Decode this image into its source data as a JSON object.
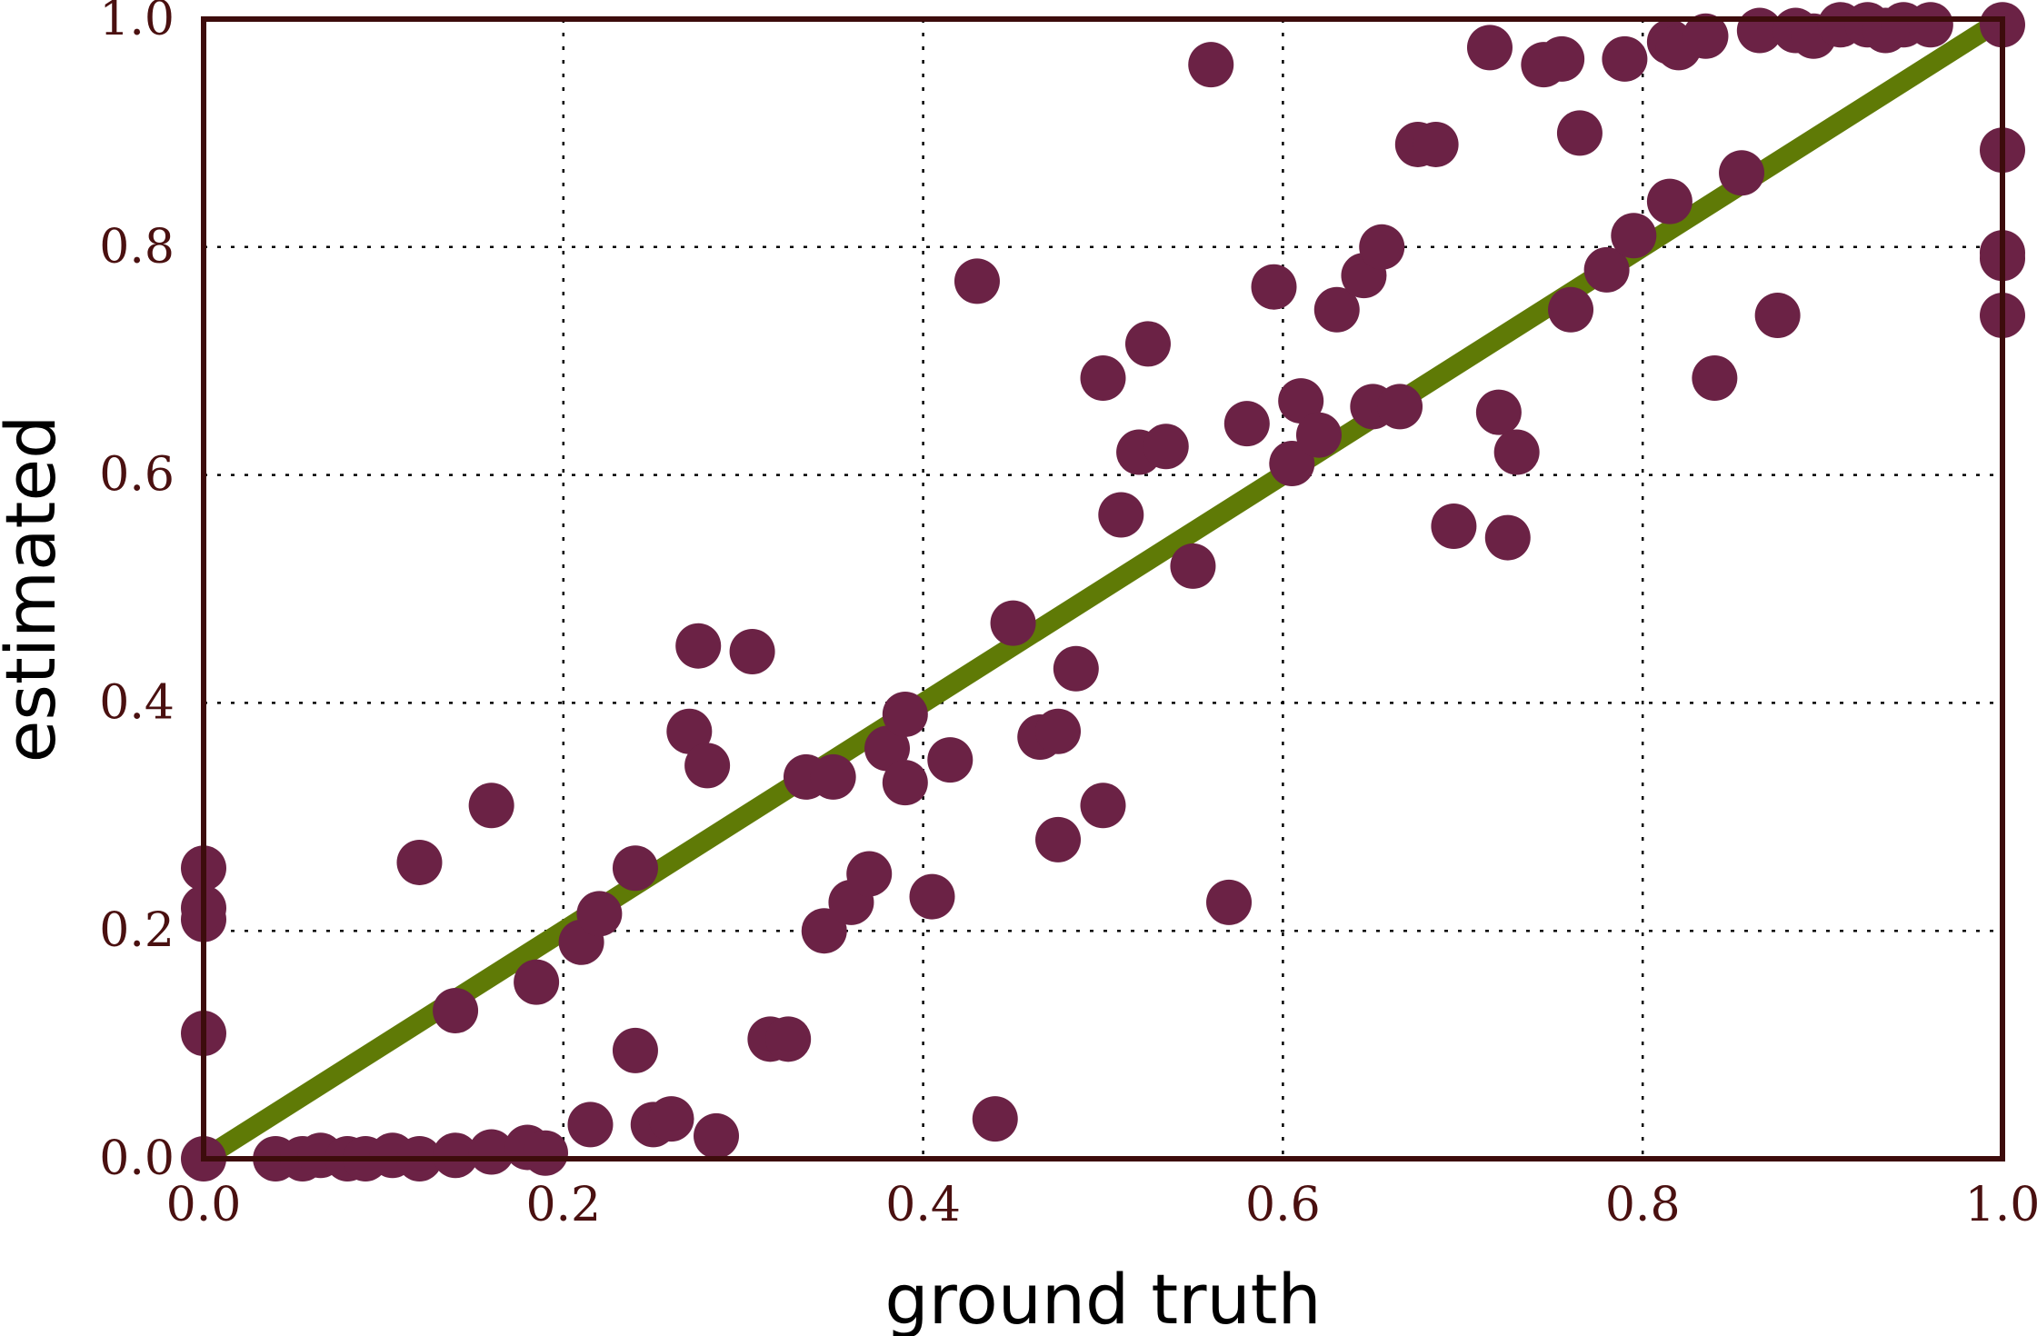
{
  "chart_data": {
    "type": "scatter",
    "title": "",
    "xlabel": "ground truth",
    "ylabel": "estimated",
    "xlim": [
      0.0,
      1.0
    ],
    "ylim": [
      0.0,
      1.0
    ],
    "x_ticks": [
      "0.0",
      "0.2",
      "0.4",
      "0.6",
      "0.8",
      "1.0"
    ],
    "y_ticks": [
      "0.0",
      "0.2",
      "0.4",
      "0.6",
      "0.8",
      "1.0"
    ],
    "grid": true,
    "reference_line": {
      "from": [
        0.0,
        0.0
      ],
      "to": [
        1.0,
        1.0
      ]
    },
    "colors": {
      "points": "#6b2245",
      "line": "#5f7a06",
      "frame": "#3d0c0c",
      "tick_labels": "#4a1010",
      "axis_titles": "#000000",
      "grid": "#000000"
    },
    "points": [
      [
        0.0,
        0.0
      ],
      [
        0.0,
        0.11
      ],
      [
        0.0,
        0.21
      ],
      [
        0.0,
        0.22
      ],
      [
        0.0,
        0.255
      ],
      [
        0.04,
        0.0
      ],
      [
        0.055,
        0.0
      ],
      [
        0.065,
        0.003
      ],
      [
        0.08,
        0.0
      ],
      [
        0.09,
        0.0
      ],
      [
        0.105,
        0.003
      ],
      [
        0.12,
        0.0
      ],
      [
        0.14,
        0.003
      ],
      [
        0.16,
        0.006
      ],
      [
        0.18,
        0.01
      ],
      [
        0.19,
        0.005
      ],
      [
        0.12,
        0.26
      ],
      [
        0.14,
        0.13
      ],
      [
        0.16,
        0.31
      ],
      [
        0.185,
        0.155
      ],
      [
        0.21,
        0.19
      ],
      [
        0.215,
        0.03
      ],
      [
        0.22,
        0.215
      ],
      [
        0.24,
        0.095
      ],
      [
        0.24,
        0.255
      ],
      [
        0.25,
        0.03
      ],
      [
        0.26,
        0.035
      ],
      [
        0.27,
        0.375
      ],
      [
        0.275,
        0.45
      ],
      [
        0.28,
        0.345
      ],
      [
        0.285,
        0.02
      ],
      [
        0.305,
        0.445
      ],
      [
        0.315,
        0.105
      ],
      [
        0.325,
        0.105
      ],
      [
        0.335,
        0.335
      ],
      [
        0.345,
        0.2
      ],
      [
        0.35,
        0.335
      ],
      [
        0.36,
        0.225
      ],
      [
        0.37,
        0.25
      ],
      [
        0.38,
        0.36
      ],
      [
        0.39,
        0.33
      ],
      [
        0.39,
        0.39
      ],
      [
        0.405,
        0.23
      ],
      [
        0.415,
        0.35
      ],
      [
        0.43,
        0.77
      ],
      [
        0.44,
        0.035
      ],
      [
        0.45,
        0.47
      ],
      [
        0.465,
        0.37
      ],
      [
        0.475,
        0.28
      ],
      [
        0.475,
        0.375
      ],
      [
        0.485,
        0.43
      ],
      [
        0.5,
        0.31
      ],
      [
        0.5,
        0.685
      ],
      [
        0.51,
        0.565
      ],
      [
        0.52,
        0.62
      ],
      [
        0.525,
        0.715
      ],
      [
        0.535,
        0.625
      ],
      [
        0.55,
        0.52
      ],
      [
        0.56,
        0.96
      ],
      [
        0.57,
        0.225
      ],
      [
        0.58,
        0.645
      ],
      [
        0.595,
        0.765
      ],
      [
        0.605,
        0.61
      ],
      [
        0.61,
        0.665
      ],
      [
        0.62,
        0.635
      ],
      [
        0.63,
        0.745
      ],
      [
        0.645,
        0.775
      ],
      [
        0.65,
        0.66
      ],
      [
        0.655,
        0.8
      ],
      [
        0.665,
        0.66
      ],
      [
        0.675,
        0.89
      ],
      [
        0.685,
        0.89
      ],
      [
        0.695,
        0.555
      ],
      [
        0.715,
        0.975
      ],
      [
        0.72,
        0.655
      ],
      [
        0.725,
        0.545
      ],
      [
        0.73,
        0.62
      ],
      [
        0.745,
        0.96
      ],
      [
        0.755,
        0.965
      ],
      [
        0.76,
        0.745
      ],
      [
        0.765,
        0.9
      ],
      [
        0.78,
        0.78
      ],
      [
        0.79,
        0.965
      ],
      [
        0.795,
        0.81
      ],
      [
        0.815,
        0.98
      ],
      [
        0.815,
        0.84
      ],
      [
        0.82,
        0.975
      ],
      [
        0.835,
        0.985
      ],
      [
        0.84,
        0.685
      ],
      [
        0.855,
        0.865
      ],
      [
        0.865,
        0.99
      ],
      [
        0.875,
        0.74
      ],
      [
        0.885,
        0.99
      ],
      [
        0.895,
        0.985
      ],
      [
        0.91,
        0.995
      ],
      [
        0.925,
        0.995
      ],
      [
        0.935,
        0.99
      ],
      [
        0.945,
        0.995
      ],
      [
        0.96,
        0.995
      ],
      [
        1.0,
        0.995
      ],
      [
        1.0,
        0.885
      ],
      [
        1.0,
        0.79
      ],
      [
        1.0,
        0.795
      ],
      [
        1.0,
        0.74
      ]
    ]
  }
}
